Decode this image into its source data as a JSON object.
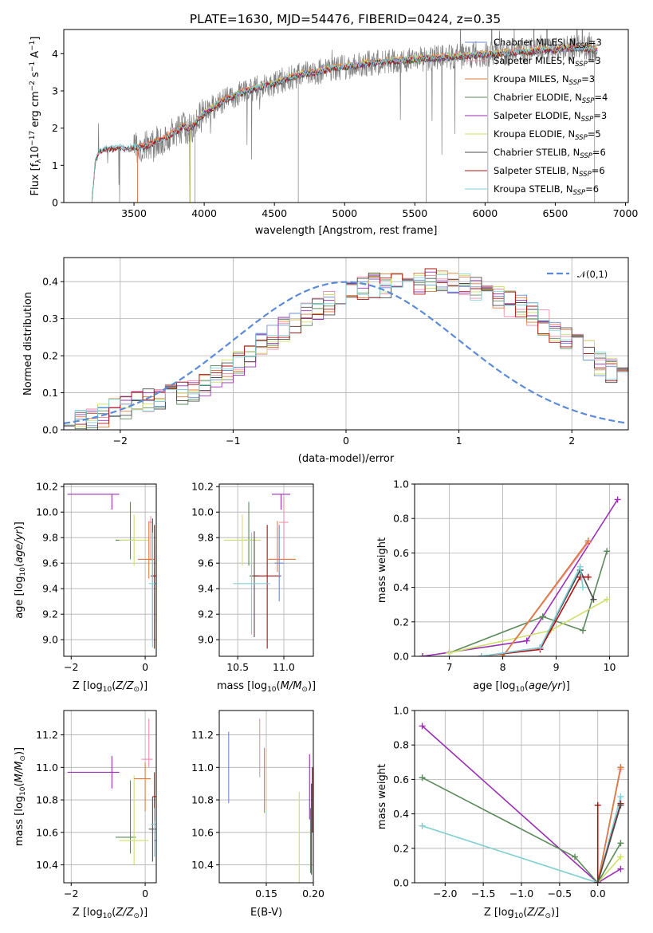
{
  "figure": {
    "title": "PLATE=1630, MJD=54476, FIBERID=0424, z=0.35"
  },
  "colors": {
    "data": "#808080",
    "normal": "#5b8bd8",
    "models": [
      "#6b8bd6",
      "#ee8fa8",
      "#e07b3a",
      "#5a8a5a",
      "#9a2fb5",
      "#cfe06a",
      "#4d4d4d",
      "#b01010",
      "#80d0d8"
    ]
  },
  "chart_data": [
    {
      "id": "spectrum",
      "type": "line",
      "xlabel": "wavelength [Angstrom, rest frame]",
      "ylabel": "Flux [f_λ 10^-17 erg cm^-2 s^-1 A^-1]",
      "xlim": [
        3000,
        7020
      ],
      "ylim": [
        0,
        4.65
      ],
      "xticks": [
        3500,
        4000,
        4500,
        5000,
        5500,
        6000,
        6500,
        7000
      ],
      "yticks": [
        0,
        1,
        2,
        3,
        4
      ],
      "grid": false,
      "legend_position": "top-right",
      "data_series": {
        "name": "data",
        "x": [
          3200,
          3225,
          3260,
          3300,
          3350,
          3400,
          3450,
          3500,
          3550,
          3600,
          3650,
          3700,
          3750,
          3800,
          3850,
          3900,
          3950,
          4000,
          4100,
          4200,
          4300,
          4400,
          4500,
          4600,
          4700,
          4800,
          4900,
          5000,
          5100,
          5200,
          5300,
          5400,
          5500,
          5600,
          5700,
          5800,
          5900,
          6000,
          6100,
          6200,
          6300,
          6400,
          6500,
          6600,
          6700,
          6800
        ],
        "y": [
          0,
          1.15,
          1.4,
          1.45,
          1.45,
          1.5,
          1.45,
          1.5,
          1.5,
          1.55,
          1.6,
          1.7,
          1.8,
          1.9,
          2.05,
          2.0,
          2.2,
          2.4,
          2.65,
          2.85,
          3.0,
          3.1,
          3.2,
          3.35,
          3.45,
          3.5,
          3.6,
          3.65,
          3.7,
          3.75,
          3.8,
          3.82,
          3.85,
          3.88,
          3.9,
          3.92,
          3.95,
          3.98,
          4.0,
          4.05,
          4.05,
          4.1,
          4.1,
          4.15,
          4.15,
          4.1
        ]
      },
      "series": [
        {
          "name": "Chabrier MILES, N_SSP=3",
          "label_main": "Chabrier MILES, N",
          "label_sub": "SSP",
          "label_tail": "=3",
          "color_index": 0,
          "x_start": 3525,
          "x_end": 6800,
          "y_offset": 0.0
        },
        {
          "name": "Salpeter MILES, N_SSP=3",
          "label_main": "Salpeter MILES, N",
          "label_sub": "SSP",
          "label_tail": "=3",
          "color_index": 1,
          "x_start": 3525,
          "x_end": 6800,
          "y_offset": 0.02
        },
        {
          "name": "Kroupa MILES, N_SSP=3",
          "label_main": "Kroupa MILES, N",
          "label_sub": "SSP",
          "label_tail": "=3",
          "color_index": 2,
          "x_start": 3525,
          "x_end": 6800,
          "y_offset": 0.04
        },
        {
          "name": "Chabrier ELODIE, N_SSP=4",
          "label_main": "Chabrier ELODIE, N",
          "label_sub": "SSP",
          "label_tail": "=4",
          "color_index": 3,
          "x_start": 3900,
          "x_end": 6800,
          "y_offset": -0.02
        },
        {
          "name": "Salpeter ELODIE, N_SSP=3",
          "label_main": "Salpeter ELODIE, N",
          "label_sub": "SSP",
          "label_tail": "=3",
          "color_index": 4,
          "x_start": 3900,
          "x_end": 6800,
          "y_offset": 0.0
        },
        {
          "name": "Kroupa ELODIE, N_SSP=5",
          "label_main": "Kroupa ELODIE, N",
          "label_sub": "SSP",
          "label_tail": "=5",
          "color_index": 5,
          "x_start": 3900,
          "x_end": 6800,
          "y_offset": 0.03
        },
        {
          "name": "Chabrier STELIB, N_SSP=6",
          "label_main": "Chabrier STELIB, N",
          "label_sub": "SSP",
          "label_tail": "=6",
          "color_index": 6,
          "x_start": 3200,
          "x_end": 6800,
          "y_offset": -0.03
        },
        {
          "name": "Salpeter STELIB, N_SSP=6",
          "label_main": "Salpeter STELIB, N",
          "label_sub": "SSP",
          "label_tail": "=6",
          "color_index": 7,
          "x_start": 3200,
          "x_end": 6800,
          "y_offset": -0.01
        },
        {
          "name": "Kroupa STELIB, N_SSP=6",
          "label_main": "Kroupa STELIB, N",
          "label_sub": "SSP",
          "label_tail": "=6",
          "color_index": 8,
          "x_start": 3200,
          "x_end": 6800,
          "y_offset": 0.01
        }
      ]
    },
    {
      "id": "residuals",
      "type": "line",
      "xlabel": "(data-model)/error",
      "ylabel": "Normed distribution",
      "xlim": [
        -2.5,
        2.5
      ],
      "ylim": [
        0,
        0.465
      ],
      "xticks": [
        -2,
        -1,
        0,
        1,
        2
      ],
      "yticks": [
        0.0,
        0.1,
        0.2,
        0.3,
        0.4
      ],
      "grid": true,
      "legend_position": "top-right",
      "legend": [
        "N(0,1)"
      ],
      "bin_width": 0.1,
      "bin_start": -2.5,
      "base_hist": [
        0.02,
        0.03,
        0.03,
        0.04,
        0.05,
        0.06,
        0.07,
        0.08,
        0.09,
        0.1,
        0.1,
        0.11,
        0.12,
        0.14,
        0.16,
        0.18,
        0.2,
        0.23,
        0.25,
        0.27,
        0.29,
        0.31,
        0.33,
        0.34,
        0.36,
        0.37,
        0.38,
        0.39,
        0.39,
        0.4,
        0.4,
        0.4,
        0.4,
        0.4,
        0.39,
        0.39,
        0.38,
        0.37,
        0.36,
        0.34,
        0.33,
        0.31,
        0.29,
        0.27,
        0.25,
        0.23,
        0.21,
        0.18,
        0.16,
        0.14
      ],
      "normal_curve": {
        "mu": 0,
        "sigma": 1,
        "label": "N(0,1)"
      }
    },
    {
      "id": "age_vs_Z",
      "type": "scatter",
      "xlabel": "Z [log10(Z/Z⊙)]",
      "ylabel": "age [log10(age/yr)]",
      "xlim": [
        -2.2,
        0.3
      ],
      "ylim": [
        8.87,
        10.22
      ],
      "xticks": [
        -2,
        0
      ],
      "yticks": [
        9.0,
        9.2,
        9.4,
        9.6,
        9.8,
        10.0,
        10.2
      ],
      "grid": true,
      "points": [
        {
          "c": 4,
          "x": -0.9,
          "y": 10.14,
          "xerr": [
            1.2,
            0.2
          ],
          "yerr": [
            0.12,
            0.0
          ]
        },
        {
          "c": 1,
          "x": 0.15,
          "y": 9.92,
          "xerr": [
            0.05,
            0.05
          ],
          "yerr": [
            0.3,
            0.05
          ]
        },
        {
          "c": 3,
          "x": -0.4,
          "y": 9.78,
          "xerr": [
            0.4,
            0.15
          ],
          "yerr": [
            0.15,
            0.3
          ]
        },
        {
          "c": 5,
          "x": -0.3,
          "y": 9.78,
          "xerr": [
            0.4,
            0.4
          ],
          "yerr": [
            0.2,
            0.2
          ]
        },
        {
          "c": 2,
          "x": 0.1,
          "y": 9.63,
          "xerr": [
            0.3,
            0.15
          ],
          "yerr": [
            0.15,
            0.3
          ]
        },
        {
          "c": 6,
          "x": 0.2,
          "y": 9.5,
          "xerr": [
            0.05,
            0.05
          ],
          "yerr": [
            0.5,
            0.45
          ]
        },
        {
          "c": 7,
          "x": 0.25,
          "y": 9.5,
          "xerr": [
            0.05,
            0.1
          ],
          "yerr": [
            0.57,
            0.4
          ]
        },
        {
          "c": 8,
          "x": 0.2,
          "y": 9.44,
          "xerr": [
            0.1,
            0.1
          ],
          "yerr": [
            0.5,
            0.4
          ]
        },
        {
          "c": 0,
          "x": 0.3,
          "y": 9.44,
          "xerr": [
            0.05,
            0.05
          ],
          "yerr": [
            0.3,
            0.3
          ]
        }
      ]
    },
    {
      "id": "age_vs_mass",
      "type": "scatter",
      "xlabel": "mass [log10(M/M⊙)]",
      "ylabel": "",
      "xlim": [
        10.3,
        11.32
      ],
      "ylim": [
        8.87,
        10.22
      ],
      "xticks": [
        10.5,
        11.0
      ],
      "yticks": [
        9.0,
        9.2,
        9.4,
        9.6,
        9.8,
        10.0,
        10.2
      ],
      "grid": true,
      "points": [
        {
          "c": 4,
          "x": 10.97,
          "y": 10.14,
          "xerr": [
            0.1,
            0.1
          ],
          "yerr": [
            0.12,
            0.0
          ]
        },
        {
          "c": 1,
          "x": 11.0,
          "y": 9.92,
          "xerr": [
            0.05,
            0.05
          ],
          "yerr": [
            0.3,
            0.2
          ]
        },
        {
          "c": 3,
          "x": 10.62,
          "y": 9.78,
          "xerr": [
            0.05,
            0.05
          ],
          "yerr": [
            0.2,
            0.3
          ]
        },
        {
          "c": 5,
          "x": 10.55,
          "y": 9.78,
          "xerr": [
            0.2,
            0.2
          ],
          "yerr": [
            0.2,
            0.2
          ]
        },
        {
          "c": 2,
          "x": 10.93,
          "y": 9.63,
          "xerr": [
            0.1,
            0.2
          ],
          "yerr": [
            0.1,
            0.3
          ]
        },
        {
          "c": 6,
          "x": 10.68,
          "y": 9.5,
          "xerr": [
            0.05,
            0.05
          ],
          "yerr": [
            0.48,
            0.35
          ]
        },
        {
          "c": 7,
          "x": 10.82,
          "y": 9.5,
          "xerr": [
            0.15,
            0.15
          ],
          "yerr": [
            0.57,
            0.4
          ]
        },
        {
          "c": 8,
          "x": 10.65,
          "y": 9.44,
          "xerr": [
            0.2,
            0.2
          ],
          "yerr": [
            0.4,
            0.4
          ]
        },
        {
          "c": 0,
          "x": 10.95,
          "y": 9.6,
          "xerr": [
            0.05,
            0.05
          ],
          "yerr": [
            0.3,
            0.3
          ]
        }
      ]
    },
    {
      "id": "weight_vs_age",
      "type": "line",
      "xlabel": "age [log10(age/yr)]",
      "ylabel": "mass weight",
      "xlim": [
        6.35,
        10.35
      ],
      "ylim": [
        0,
        1.0
      ],
      "xticks": [
        7,
        8,
        9,
        10
      ],
      "yticks": [
        0.0,
        0.2,
        0.4,
        0.6,
        0.8,
        1.0
      ],
      "grid": true,
      "series": [
        {
          "c": 4,
          "x": [
            6.5,
            8.45,
            8.75,
            10.15
          ],
          "y": [
            0.0,
            0.09,
            0.23,
            0.91
          ]
        },
        {
          "c": 3,
          "x": [
            7.0,
            8.75,
            9.5,
            9.95
          ],
          "y": [
            0.02,
            0.23,
            0.15,
            0.61
          ]
        },
        {
          "c": 5,
          "x": [
            7.0,
            8.9,
            9.95
          ],
          "y": [
            0.02,
            0.15,
            0.33
          ]
        },
        {
          "c": 0,
          "x": [
            8.0,
            9.6
          ],
          "y": [
            0.0,
            0.67
          ]
        },
        {
          "c": 1,
          "x": [
            8.0,
            9.6
          ],
          "y": [
            0.0,
            0.66
          ]
        },
        {
          "c": 2,
          "x": [
            8.0,
            9.6
          ],
          "y": [
            0.0,
            0.67
          ]
        },
        {
          "c": 6,
          "x": [
            7.6,
            8.7,
            9.45,
            9.7
          ],
          "y": [
            0.0,
            0.05,
            0.5,
            0.33
          ]
        },
        {
          "c": 7,
          "x": [
            7.6,
            8.7,
            9.45,
            9.6
          ],
          "y": [
            0.0,
            0.04,
            0.46,
            0.46
          ]
        },
        {
          "c": 8,
          "x": [
            7.6,
            8.7,
            9.45,
            9.5
          ],
          "y": [
            0.0,
            0.05,
            0.52,
            0.4
          ]
        }
      ]
    },
    {
      "id": "mass_vs_Z",
      "type": "scatter",
      "xlabel": "Z [log10(Z/Z⊙)]",
      "ylabel": "mass [log10(M/M⊙)]",
      "xlim": [
        -2.2,
        0.3
      ],
      "ylim": [
        10.29,
        11.35
      ],
      "xticks": [
        -2,
        0
      ],
      "yticks": [
        10.4,
        10.6,
        10.8,
        11.0,
        11.2
      ],
      "grid": true,
      "points": [
        {
          "c": 4,
          "x": -0.9,
          "y": 10.97,
          "xerr": [
            1.2,
            0.2
          ],
          "yerr": [
            0.1,
            0.1
          ]
        },
        {
          "c": 1,
          "x": 0.1,
          "y": 11.05,
          "xerr": [
            0.2,
            0.1
          ],
          "yerr": [
            0.05,
            0.25
          ]
        },
        {
          "c": 3,
          "x": -0.4,
          "y": 10.57,
          "xerr": [
            0.4,
            0.15
          ],
          "yerr": [
            0.1,
            0.35
          ]
        },
        {
          "c": 5,
          "x": -0.3,
          "y": 10.55,
          "xerr": [
            0.4,
            0.4
          ],
          "yerr": [
            0.15,
            0.4
          ]
        },
        {
          "c": 2,
          "x": 0.0,
          "y": 10.93,
          "xerr": [
            0.3,
            0.15
          ],
          "yerr": [
            0.2,
            0.1
          ]
        },
        {
          "c": 6,
          "x": 0.2,
          "y": 10.62,
          "xerr": [
            0.1,
            0.1
          ],
          "yerr": [
            0.2,
            0.2
          ]
        },
        {
          "c": 7,
          "x": 0.25,
          "y": 10.82,
          "xerr": [
            0.05,
            0.1
          ],
          "yerr": [
            0.15,
            0.15
          ]
        },
        {
          "c": 8,
          "x": 0.25,
          "y": 10.65,
          "xerr": [
            0.1,
            0.05
          ],
          "yerr": [
            0.2,
            0.1
          ]
        },
        {
          "c": 0,
          "x": 0.3,
          "y": 10.55,
          "xerr": [
            0.05,
            0.05
          ],
          "yerr": [
            0.1,
            0.1
          ]
        }
      ]
    },
    {
      "id": "mass_vs_EBV",
      "type": "scatter",
      "xlabel": "E(B-V)",
      "ylabel": "",
      "xlim": [
        0.1,
        0.2
      ],
      "ylim": [
        10.29,
        11.35
      ],
      "xticks": [
        0.15,
        0.2
      ],
      "yticks": [
        10.4,
        10.6,
        10.8,
        11.0,
        11.2
      ],
      "grid": true,
      "points": [
        {
          "c": 0,
          "x": 0.11,
          "y": 11.0,
          "yerr": [
            0.22,
            0.22
          ]
        },
        {
          "c": 1,
          "x": 0.143,
          "y": 11.12,
          "yerr": [
            0.18,
            0.18
          ]
        },
        {
          "c": 2,
          "x": 0.148,
          "y": 10.92,
          "yerr": [
            0.2,
            0.2
          ]
        },
        {
          "c": 5,
          "x": 0.185,
          "y": 10.55,
          "yerr": [
            0.3,
            0.3
          ]
        },
        {
          "c": 4,
          "x": 0.196,
          "y": 10.88,
          "yerr": [
            0.2,
            0.2
          ]
        },
        {
          "c": 3,
          "x": 0.197,
          "y": 10.55,
          "yerr": [
            0.2,
            0.2
          ]
        },
        {
          "c": 6,
          "x": 0.198,
          "y": 10.62,
          "yerr": [
            0.28,
            0.28
          ]
        },
        {
          "c": 7,
          "x": 0.199,
          "y": 10.8,
          "yerr": [
            0.2,
            0.2
          ]
        },
        {
          "c": 8,
          "x": 0.2,
          "y": 10.6,
          "yerr": [
            0.22,
            0.22
          ]
        }
      ]
    },
    {
      "id": "weight_vs_Z",
      "type": "line",
      "xlabel": "Z [log10(Z/Z⊙)]",
      "ylabel": "mass weight",
      "xlim": [
        -2.4,
        0.4
      ],
      "ylim": [
        0,
        1.0
      ],
      "xticks": [
        -2.0,
        -1.5,
        -1.0,
        -0.5,
        0.0
      ],
      "yticks": [
        0.0,
        0.2,
        0.4,
        0.6,
        0.8,
        1.0
      ],
      "grid": true,
      "series": [
        {
          "c": 4,
          "x": [
            -2.3,
            0.0,
            0.3
          ],
          "y": [
            0.91,
            0.0,
            0.08
          ]
        },
        {
          "c": 3,
          "x": [
            -2.3,
            -0.3,
            0.0,
            0.3
          ],
          "y": [
            0.61,
            0.15,
            0.0,
            0.23
          ]
        },
        {
          "c": 5,
          "x": [
            -2.3,
            0.0,
            0.3
          ],
          "y": [
            0.33,
            0.0,
            0.15
          ]
        },
        {
          "c": 8,
          "x": [
            -2.3,
            0.0,
            0.3
          ],
          "y": [
            0.33,
            0.0,
            0.5
          ]
        },
        {
          "c": 0,
          "x": [
            0.0,
            0.3
          ],
          "y": [
            0.0,
            0.67
          ]
        },
        {
          "c": 1,
          "x": [
            0.0,
            0.3
          ],
          "y": [
            0.0,
            0.66
          ]
        },
        {
          "c": 2,
          "x": [
            0.0,
            0.3
          ],
          "y": [
            0.0,
            0.67
          ]
        },
        {
          "c": 7,
          "x": [
            0.0,
            0.0,
            0.3
          ],
          "y": [
            0.45,
            0.0,
            0.46
          ]
        },
        {
          "c": 6,
          "x": [
            0.0,
            0.3
          ],
          "y": [
            0.0,
            0.45
          ]
        }
      ]
    }
  ]
}
